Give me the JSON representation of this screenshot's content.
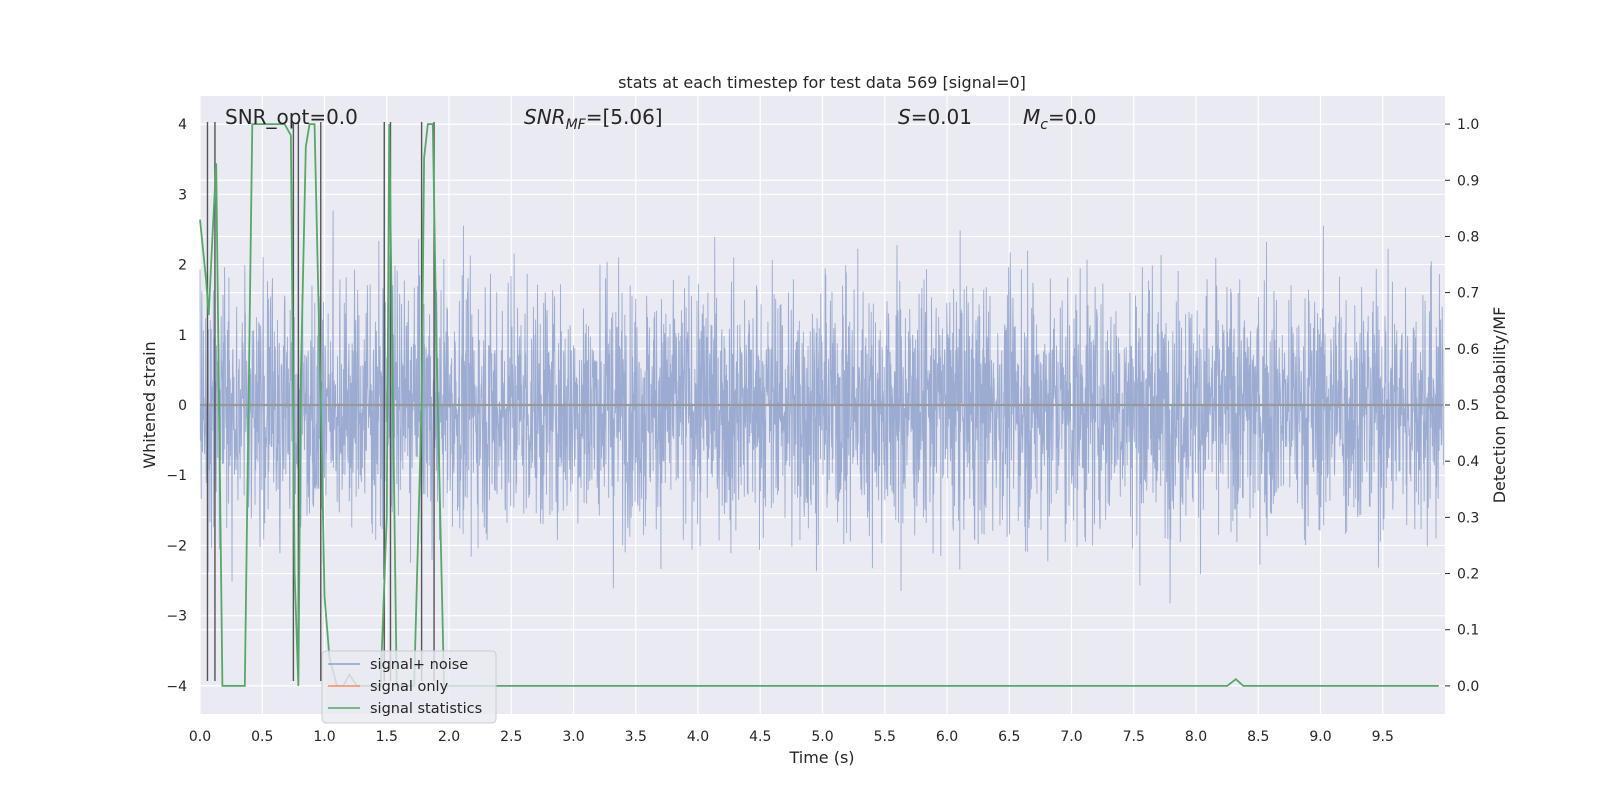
{
  "chart_data": {
    "type": "line",
    "title": "stats at each timestep for test data 569 [signal=0]",
    "xlabel": "Time (s)",
    "ylabel": "Whitened strain",
    "ylabel_right": "Detection probability/MF",
    "xlim": [
      0,
      10
    ],
    "ylim": [
      -4.4,
      4.4
    ],
    "ylim_right": [
      -0.05,
      1.05
    ],
    "grid": true,
    "legend_position": "lower-left",
    "x_ticks": [
      0.0,
      0.5,
      1.0,
      1.5,
      2.0,
      2.5,
      3.0,
      3.5,
      4.0,
      4.5,
      5.0,
      5.5,
      6.0,
      6.5,
      7.0,
      7.5,
      8.0,
      8.5,
      9.0,
      9.5
    ],
    "x_tick_labels": [
      "0.0",
      "0.5",
      "1.0",
      "1.5",
      "2.0",
      "2.5",
      "3.0",
      "3.5",
      "4.0",
      "4.5",
      "5.0",
      "5.5",
      "6.0",
      "6.5",
      "7.0",
      "7.5",
      "8.0",
      "8.5",
      "9.0",
      "9.5"
    ],
    "y_ticks": [
      -4,
      -3,
      -2,
      -1,
      0,
      1,
      2,
      3,
      4
    ],
    "y_tick_labels": [
      "−4",
      "−3",
      "−2",
      "−1",
      "0",
      "1",
      "2",
      "3",
      "4"
    ],
    "y_right_ticks": [
      0.0,
      0.1,
      0.2,
      0.3,
      0.4,
      0.5,
      0.6,
      0.7,
      0.8,
      0.9,
      1.0
    ],
    "y_right_tick_labels": [
      "0.0",
      "0.1",
      "0.2",
      "0.3",
      "0.4",
      "0.5",
      "0.6",
      "0.7",
      "0.8",
      "0.9",
      "1.0"
    ],
    "annotations": {
      "snr_opt": "SNR_opt=0.0",
      "snr_mf_base": "SNR",
      "snr_mf_sub": "MF",
      "snr_mf_value": "=[5.06]",
      "s_symbol": "S",
      "s_value": "=0.01",
      "mc_base": "M",
      "mc_sub": "c",
      "mc_value": "=0.0"
    },
    "series": [
      {
        "name": "signal+ noise",
        "color": "#8da0cb",
        "kind": "dense-noise",
        "amplitude_range": [
          -3.9,
          4.0
        ]
      },
      {
        "name": "signal only",
        "color": "#fc8d62",
        "values_constant": 0
      },
      {
        "name": "signal statistics",
        "color": "#55a868",
        "axis": "right",
        "x": [
          0.0,
          0.05,
          0.07,
          0.1,
          0.13,
          0.18,
          0.22,
          0.3,
          0.36,
          0.42,
          0.46,
          0.55,
          0.62,
          0.68,
          0.73,
          0.76,
          0.79,
          0.81,
          0.85,
          0.88,
          0.92,
          0.98,
          1.0,
          1.04,
          1.1,
          1.15,
          1.2,
          1.26,
          1.32,
          1.38,
          1.45,
          1.5,
          1.52,
          1.55,
          1.58,
          1.62,
          1.66,
          1.72,
          1.78,
          1.8,
          1.83,
          1.87,
          1.9,
          1.96,
          2.0,
          2.5,
          3.0,
          3.5,
          4.0,
          4.5,
          5.0,
          5.5,
          6.0,
          6.5,
          7.0,
          7.5,
          8.0,
          8.25,
          8.32,
          8.38,
          8.5,
          9.0,
          9.5,
          9.95
        ],
        "values": [
          0.83,
          0.72,
          0.66,
          0.8,
          0.93,
          0.0,
          0.0,
          0.0,
          0.0,
          1.0,
          1.0,
          1.0,
          1.0,
          1.0,
          0.98,
          0.2,
          0.0,
          0.55,
          0.96,
          1.0,
          1.0,
          0.4,
          0.16,
          0.05,
          0.0,
          0.0,
          0.02,
          0.0,
          0.0,
          0.0,
          0.0,
          0.3,
          1.0,
          0.5,
          0.0,
          0.0,
          0.0,
          0.0,
          0.5,
          0.94,
          1.0,
          1.0,
          0.6,
          0.0,
          0.0,
          0.0,
          0.0,
          0.0,
          0.0,
          0.0,
          0.0,
          0.0,
          0.0,
          0.0,
          0.0,
          0.0,
          0.0,
          0.0,
          0.012,
          0.0,
          0.0,
          0.0,
          0.0,
          0.0
        ]
      }
    ],
    "vertical_markers_x": [
      0.06,
      0.12,
      0.75,
      0.79,
      0.97,
      1.48,
      1.53,
      1.78,
      1.88
    ]
  }
}
